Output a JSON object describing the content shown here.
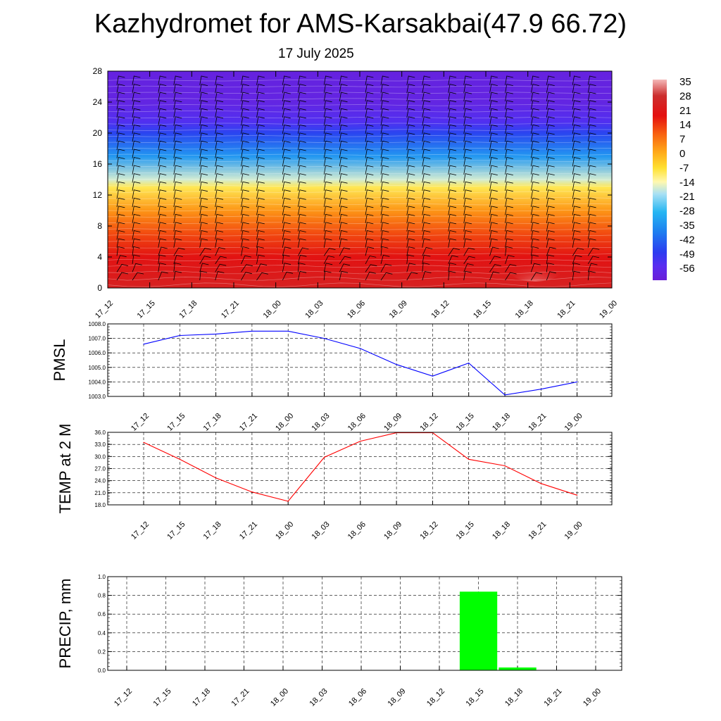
{
  "title": "Kazhydromet for AMS-Karsakbai(47.9 66.72)",
  "date": "17 July 2025",
  "chart_data": [
    {
      "type": "heatmap",
      "title": "",
      "x": [
        "17_12",
        "17_15",
        "17_18",
        "17_21",
        "18_00",
        "18_03",
        "18_06",
        "18_09",
        "18_12",
        "18_15",
        "18_18",
        "18_21",
        "19_00"
      ],
      "ylim": [
        0,
        28
      ],
      "yticks": [
        0,
        4,
        8,
        12,
        16,
        20,
        24,
        28
      ],
      "colorbar": {
        "labels": [
          "35",
          "28",
          "21",
          "14",
          "7",
          "0",
          "-7",
          "-14",
          "-21",
          "-28",
          "-35",
          "-42",
          "-49",
          "-56"
        ],
        "range": [
          -60,
          38
        ]
      },
      "profile": [
        {
          "height": 0,
          "value": 26
        },
        {
          "height": 4,
          "value": 21
        },
        {
          "height": 7,
          "value": 14
        },
        {
          "height": 10,
          "value": 5
        },
        {
          "height": 13,
          "value": -7
        },
        {
          "height": 14,
          "value": -15
        },
        {
          "height": 17,
          "value": -32
        },
        {
          "height": 20,
          "value": -45
        },
        {
          "height": 21.5,
          "value": -52
        },
        {
          "height": 24,
          "value": -57
        },
        {
          "height": 28,
          "value": -58
        }
      ],
      "surface_warm_peak": 34,
      "colors": {
        "low": "#6a1ed8",
        "high": "#f7b0b0",
        "wind_barbs": "#000000"
      }
    },
    {
      "type": "line",
      "ylabel": "PMSL",
      "x": [
        "17_12",
        "17_15",
        "17_18",
        "17_21",
        "18_00",
        "18_03",
        "18_06",
        "18_09",
        "18_12",
        "18_15",
        "18_18",
        "18_21",
        "19_00"
      ],
      "values": [
        1006.6,
        1007.2,
        1007.3,
        1007.5,
        1007.5,
        1007.0,
        1006.3,
        1005.2,
        1004.4,
        1005.3,
        1003.1,
        1003.5,
        1004.0
      ],
      "ylim": [
        1003.0,
        1008.0
      ],
      "yticks": [
        "1003.0",
        "1004.0",
        "1005.0",
        "1006.0",
        "1007.0",
        "1008.0"
      ],
      "color": "#0000ff",
      "grid": true
    },
    {
      "type": "line",
      "ylabel": "TEMP at 2 M",
      "x": [
        "17_12",
        "17_15",
        "17_18",
        "17_21",
        "18_00",
        "18_03",
        "18_06",
        "18_09",
        "18_12",
        "18_15",
        "18_18",
        "18_21",
        "19_00"
      ],
      "values": [
        33.5,
        29.3,
        24.7,
        21.2,
        18.9,
        29.8,
        33.8,
        35.9,
        35.9,
        29.3,
        27.7,
        23.3,
        20.4
      ],
      "ylim": [
        18.0,
        36.0
      ],
      "yticks": [
        "18.0",
        "21.0",
        "24.0",
        "27.0",
        "30.0",
        "33.0",
        "36.0"
      ],
      "color": "#ff0000",
      "grid": true
    },
    {
      "type": "bar",
      "ylabel": "PRECIP, mm",
      "x": [
        "17_12",
        "17_15",
        "17_18",
        "17_21",
        "18_00",
        "18_03",
        "18_06",
        "18_09",
        "18_12",
        "18_15",
        "18_18",
        "18_21",
        "19_00"
      ],
      "values": [
        0,
        0,
        0,
        0,
        0,
        0,
        0,
        0,
        0,
        0.84,
        0.03,
        0,
        0
      ],
      "ylim": [
        0,
        1.0
      ],
      "yticks": [
        "0.0",
        "0.2",
        "0.4",
        "0.6",
        "0.8",
        "1.0"
      ],
      "color": "#00ff00",
      "grid": true
    }
  ]
}
